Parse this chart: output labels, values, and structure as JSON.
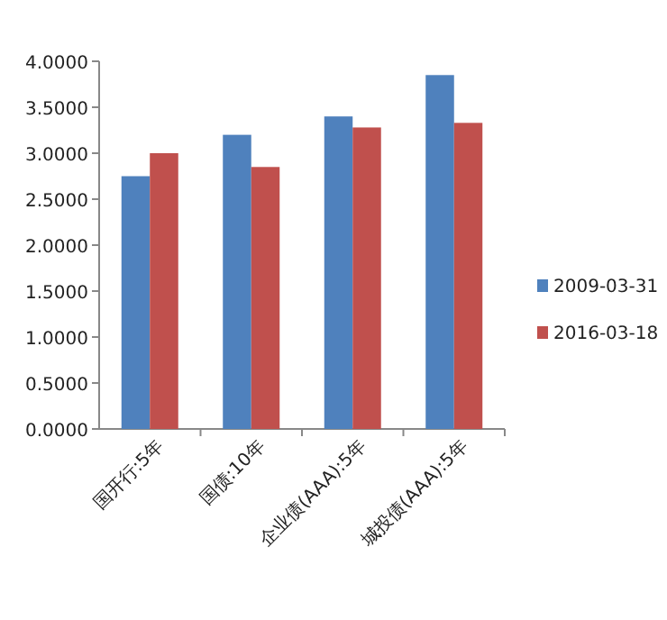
{
  "chart_data": {
    "type": "bar",
    "categories": [
      "国开行:5年",
      "国债:10年",
      "企业债(AAA):5年",
      "城投债(AAA):5年"
    ],
    "series": [
      {
        "name": "2009-03-31",
        "color": "#4f81bd",
        "values": [
          2.75,
          3.2,
          3.4,
          3.85
        ]
      },
      {
        "name": "2016-03-18",
        "color": "#c0504d",
        "values": [
          3.0,
          2.85,
          3.28,
          3.33
        ]
      }
    ],
    "ylim": [
      0,
      4
    ],
    "yticks": [
      {
        "value": 0,
        "label": "0.0000"
      },
      {
        "value": 0.5,
        "label": "0.5000"
      },
      {
        "value": 1,
        "label": "1.0000"
      },
      {
        "value": 1.5,
        "label": "1.5000"
      },
      {
        "value": 2,
        "label": "2.0000"
      },
      {
        "value": 2.5,
        "label": "2.5000"
      },
      {
        "value": 3,
        "label": "3.0000"
      },
      {
        "value": 3.5,
        "label": "3.5000"
      },
      {
        "value": 4,
        "label": "4.0000"
      }
    ],
    "grid": false,
    "legend": "right"
  }
}
